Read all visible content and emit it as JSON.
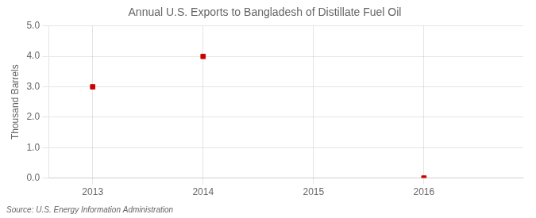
{
  "chart_data": {
    "type": "scatter",
    "title": "Annual U.S. Exports to Bangladesh of Distillate Fuel Oil",
    "ylabel": "Thousand Barrels",
    "annotation": "Source: U.S. Energy Information Administration",
    "x": [
      2013,
      2014,
      2016
    ],
    "values": [
      3.0,
      4.0,
      0.0
    ],
    "color": "#cc0000",
    "marker": "square",
    "xlim": [
      2012.6,
      2016.9
    ],
    "xticks": [
      2013,
      2014,
      2015,
      2016
    ],
    "ylim": [
      0.0,
      5.0
    ],
    "yticks": [
      {
        "value": 0.0,
        "label": "0.0"
      },
      {
        "value": 1.0,
        "label": "1.0"
      },
      {
        "value": 2.0,
        "label": "2.0"
      },
      {
        "value": 3.0,
        "label": "3.0"
      },
      {
        "value": 4.0,
        "label": "4.0"
      },
      {
        "value": 5.0,
        "label": "5.0"
      }
    ],
    "grid": true
  }
}
